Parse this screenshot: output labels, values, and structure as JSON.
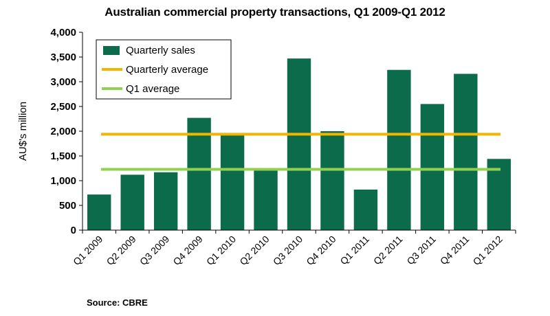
{
  "chart_data": {
    "type": "bar",
    "title": "Australian commercial property transactions, Q1 2009-Q1 2012",
    "ylabel": "AU$'s million",
    "xlabel": "",
    "categories": [
      "Q1 2009",
      "Q2 2009",
      "Q3 2009",
      "Q4 2009",
      "Q1 2010",
      "Q2 2010",
      "Q3 2010",
      "Q4 2010",
      "Q1 2011",
      "Q2 2011",
      "Q3 2011",
      "Q4 2011",
      "Q1 2012"
    ],
    "series": [
      {
        "name": "Quarterly sales",
        "type": "bar",
        "color": "#0b6b4a",
        "values": [
          720,
          1120,
          1170,
          2270,
          1930,
          1220,
          3470,
          2000,
          820,
          3240,
          2550,
          3160,
          1440
        ]
      },
      {
        "name": "Quarterly average",
        "type": "line",
        "color": "#f5b400",
        "value": 1940
      },
      {
        "name": "Q1 average",
        "type": "line",
        "color": "#92d050",
        "value": 1230
      }
    ],
    "ylim": [
      0,
      4000
    ],
    "yticks": [
      "0",
      "500",
      "1,000",
      "1,500",
      "2,000",
      "2,500",
      "3,000",
      "3,500",
      "4,000"
    ],
    "ytick_values": [
      0,
      500,
      1000,
      1500,
      2000,
      2500,
      3000,
      3500,
      4000
    ],
    "legend_position": "top-left",
    "grid": false,
    "source": "Source: CBRE"
  }
}
